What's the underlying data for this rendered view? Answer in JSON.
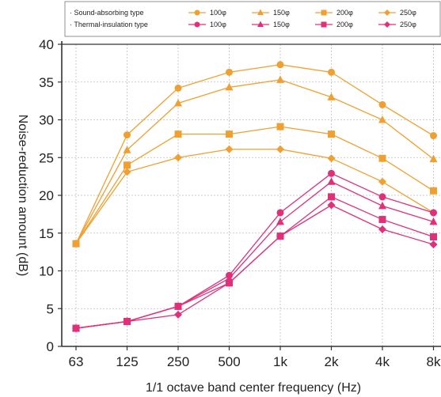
{
  "chart_data": {
    "type": "line",
    "xlabel": "1/1 octave band center frequency (Hz)",
    "ylabel": "Noise-reduction amount (dB)",
    "categories": [
      "63",
      "125",
      "250",
      "500",
      "1k",
      "2k",
      "4k",
      "8k"
    ],
    "ylim": [
      0,
      40
    ],
    "yticks": [
      0,
      5,
      10,
      15,
      20,
      25,
      30,
      35,
      40
    ],
    "grid": true,
    "legend_position": "top",
    "groups": [
      {
        "label": "Sound-absorbing type",
        "color": "#f0a030"
      },
      {
        "label": "Thermal-insulation type",
        "color": "#e0307a"
      }
    ],
    "series": [
      {
        "name": "100φ",
        "group": 0,
        "marker": "circle",
        "values": [
          13.6,
          28,
          34.2,
          36.3,
          37.3,
          36.3,
          32,
          27.9
        ]
      },
      {
        "name": "150φ",
        "group": 0,
        "marker": "triangle",
        "values": [
          13.6,
          26,
          32.2,
          34.3,
          35.3,
          33,
          30,
          24.8
        ]
      },
      {
        "name": "200φ",
        "group": 0,
        "marker": "square",
        "values": [
          13.6,
          24,
          28.1,
          28.1,
          29.1,
          28.1,
          24.9,
          20.6
        ]
      },
      {
        "name": "250φ",
        "group": 0,
        "marker": "diamond",
        "values": [
          13.6,
          23.1,
          25,
          26.1,
          26.1,
          24.9,
          21.8,
          17.7
        ]
      },
      {
        "name": "100φ",
        "group": 1,
        "marker": "circle",
        "values": [
          2.4,
          3.3,
          5.3,
          9.4,
          17.7,
          22.9,
          19.8,
          17.7
        ]
      },
      {
        "name": "150φ",
        "group": 1,
        "marker": "triangle",
        "values": [
          2.4,
          3.3,
          5.3,
          9.0,
          16.5,
          21.8,
          18.6,
          16.5
        ]
      },
      {
        "name": "200φ",
        "group": 1,
        "marker": "square",
        "values": [
          2.4,
          3.3,
          5.3,
          8.4,
          14.6,
          19.8,
          16.8,
          14.5
        ]
      },
      {
        "name": "250φ",
        "group": 1,
        "marker": "diamond",
        "values": [
          2.4,
          3.3,
          4.2,
          8.4,
          14.6,
          18.7,
          15.5,
          13.5
        ]
      }
    ]
  }
}
